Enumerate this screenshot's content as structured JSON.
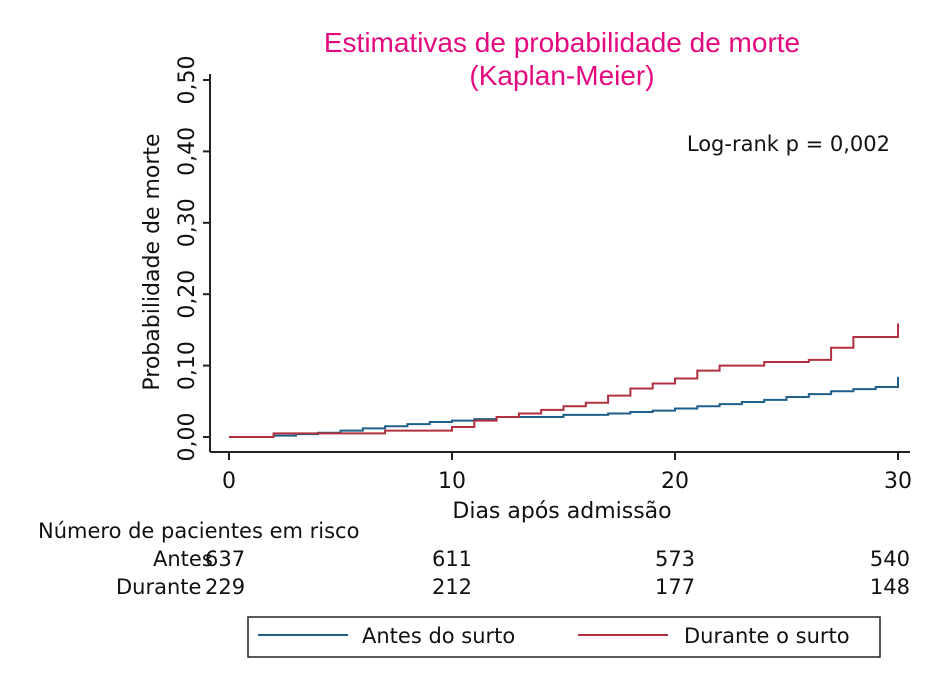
{
  "chart_data": {
    "type": "line",
    "subtype": "kaplan-meier-step",
    "title": "Estimativas de probabilidade de morte",
    "subtitle": "(Kaplan-Meier)",
    "xlabel": "Dias após admissão",
    "ylabel": "Probabilidade de morte",
    "xlim": [
      0,
      30
    ],
    "ylim": [
      0,
      0.5
    ],
    "xticks": [
      0,
      10,
      20,
      30
    ],
    "xtick_labels": [
      "0",
      "10",
      "20",
      "30"
    ],
    "yticks": [
      0,
      0.1,
      0.2,
      0.3,
      0.4,
      0.5
    ],
    "ytick_labels": [
      "0,00",
      "0,10",
      "0,20",
      "0,30",
      "0,40",
      "0,50"
    ],
    "grid": false,
    "annotation": "Log-rank p = 0,002",
    "series": [
      {
        "name": "Antes do surto",
        "color": "#1f5f8b",
        "x": [
          0,
          2,
          3,
          4,
          5,
          6,
          7,
          8,
          9,
          10,
          11,
          12,
          15,
          17,
          18,
          19,
          20,
          21,
          22,
          23,
          24,
          25,
          26,
          27,
          28,
          29,
          30
        ],
        "y": [
          0,
          0.002,
          0.004,
          0.006,
          0.009,
          0.012,
          0.015,
          0.018,
          0.021,
          0.023,
          0.025,
          0.028,
          0.031,
          0.033,
          0.035,
          0.037,
          0.04,
          0.043,
          0.046,
          0.049,
          0.052,
          0.056,
          0.06,
          0.064,
          0.067,
          0.07,
          0.073
        ]
      },
      {
        "name": "Durante o surto",
        "color": "#b0303f",
        "x": [
          0,
          2,
          7,
          10,
          11,
          12,
          13,
          14,
          15,
          16,
          17,
          18,
          19,
          20,
          21,
          22,
          23,
          24,
          26,
          27,
          28,
          30
        ],
        "y": [
          0,
          0.005,
          0.009,
          0.014,
          0.023,
          0.028,
          0.033,
          0.038,
          0.043,
          0.048,
          0.058,
          0.068,
          0.075,
          0.082,
          0.093,
          0.1,
          0.1,
          0.105,
          0.108,
          0.125,
          0.14,
          0.148
        ]
      }
    ],
    "risk_table": {
      "title": "Número de pacientes em risco",
      "times": [
        0,
        10,
        20,
        30
      ],
      "rows": [
        {
          "label": "Antes",
          "values": [
            "637",
            "611",
            "573",
            "540"
          ]
        },
        {
          "label": "Durante",
          "values": [
            "229",
            "212",
            "177",
            "148"
          ]
        }
      ]
    },
    "legend": {
      "position": "bottom",
      "entries": [
        "Antes do surto",
        "Durante o surto"
      ]
    }
  }
}
